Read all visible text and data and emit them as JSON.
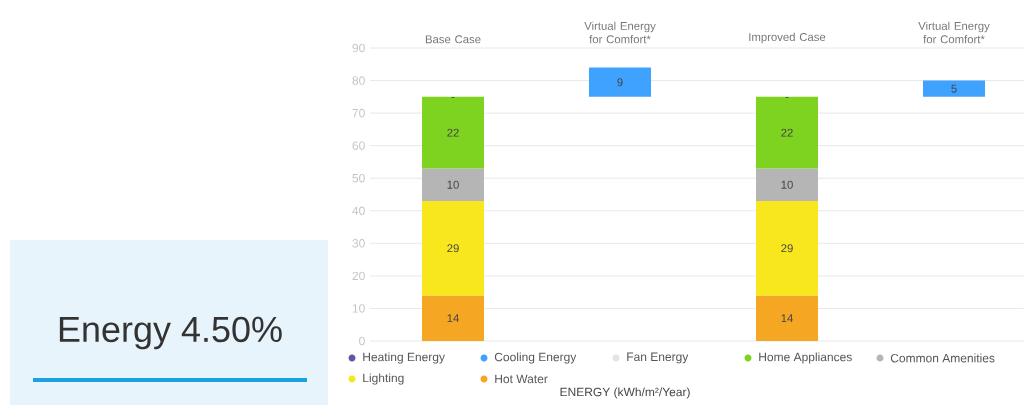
{
  "chart_data": [
    {
      "type": "other",
      "title": "Energy 4.50%"
    },
    {
      "type": "bar",
      "stacked": true,
      "categories": [
        "Base Case",
        "Virtual Energy for Comfort*",
        "Improved Case",
        "Virtual Energy for Comfort*"
      ],
      "series": [
        {
          "name": "Hot Water",
          "color": "#f5a623",
          "values": [
            14,
            null,
            14,
            null
          ],
          "value_labels": [
            "14",
            null,
            "14",
            null
          ]
        },
        {
          "name": "Lighting",
          "color": "#f8e71c",
          "values": [
            29,
            null,
            29,
            null
          ],
          "value_labels": [
            "29",
            null,
            "29",
            null
          ]
        },
        {
          "name": "Common Amenities",
          "color": "#b5b5b5",
          "values": [
            10,
            null,
            10,
            null
          ],
          "value_labels": [
            "10",
            null,
            "10",
            null
          ]
        },
        {
          "name": "Home Appliances",
          "color": "#7ed321",
          "values": [
            22,
            null,
            22,
            null
          ],
          "value_labels": [
            "22",
            null,
            "22",
            null
          ]
        },
        {
          "name": "Fan Energy",
          "color": "#e3e3e3",
          "values": [
            0,
            null,
            0,
            null
          ],
          "value_labels": [
            "-",
            null,
            "-",
            null
          ]
        },
        {
          "name": "Cooling Energy",
          "color": "#3fa2ff",
          "values": [
            null,
            9,
            null,
            5
          ],
          "base": [
            null,
            75,
            null,
            75
          ],
          "value_labels": [
            null,
            "9",
            null,
            "5"
          ]
        },
        {
          "name": "Heating Energy",
          "color": "#6554a6",
          "values": [
            null,
            null,
            null,
            null
          ]
        }
      ],
      "xlabel": "ENERGY (kWh/m²/Year)",
      "ylim": [
        0,
        90
      ],
      "yticks": [
        0,
        10,
        20,
        30,
        40,
        50,
        60,
        70,
        80,
        90
      ],
      "grid": "y",
      "legend": "bottom"
    }
  ]
}
